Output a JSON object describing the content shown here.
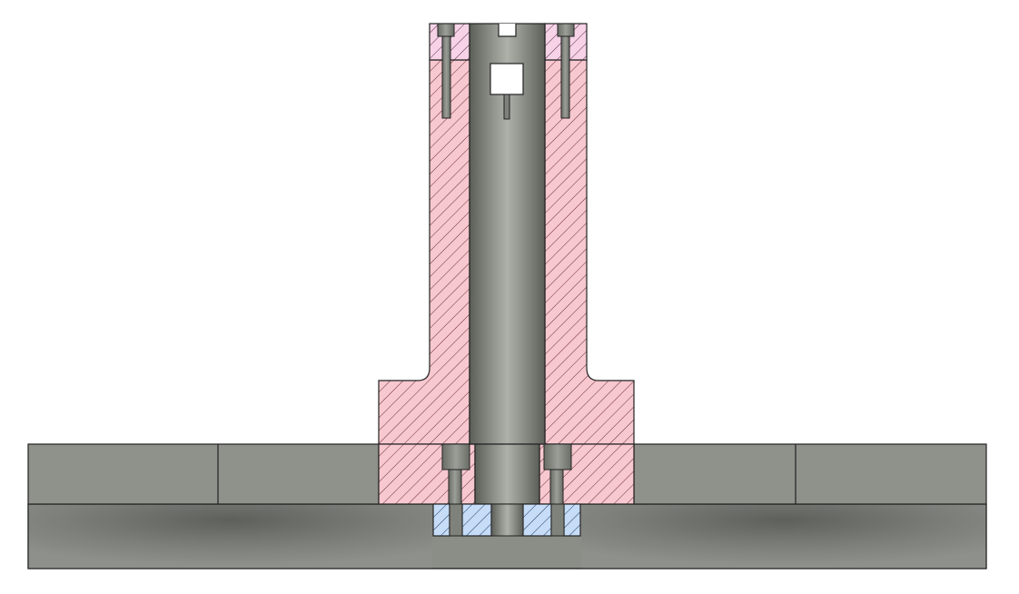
{
  "drawing": {
    "view": "section view",
    "colors": {
      "background": "#ffffff",
      "outline": "#222222",
      "section_fill_primary": "#f7c8cf",
      "section_fill_secondary": "#f6d3e6",
      "section_fill_insert": "#c6dcf7",
      "hatch_primary": "#6b2a33",
      "hatch_insert": "#1b3b66",
      "metal_dark": "#5b5d57",
      "metal_mid": "#8d8f89",
      "metal_light": "#a7aaa3",
      "plate_top": "#8f918b",
      "plate_bottom": "#7d7f79"
    }
  }
}
